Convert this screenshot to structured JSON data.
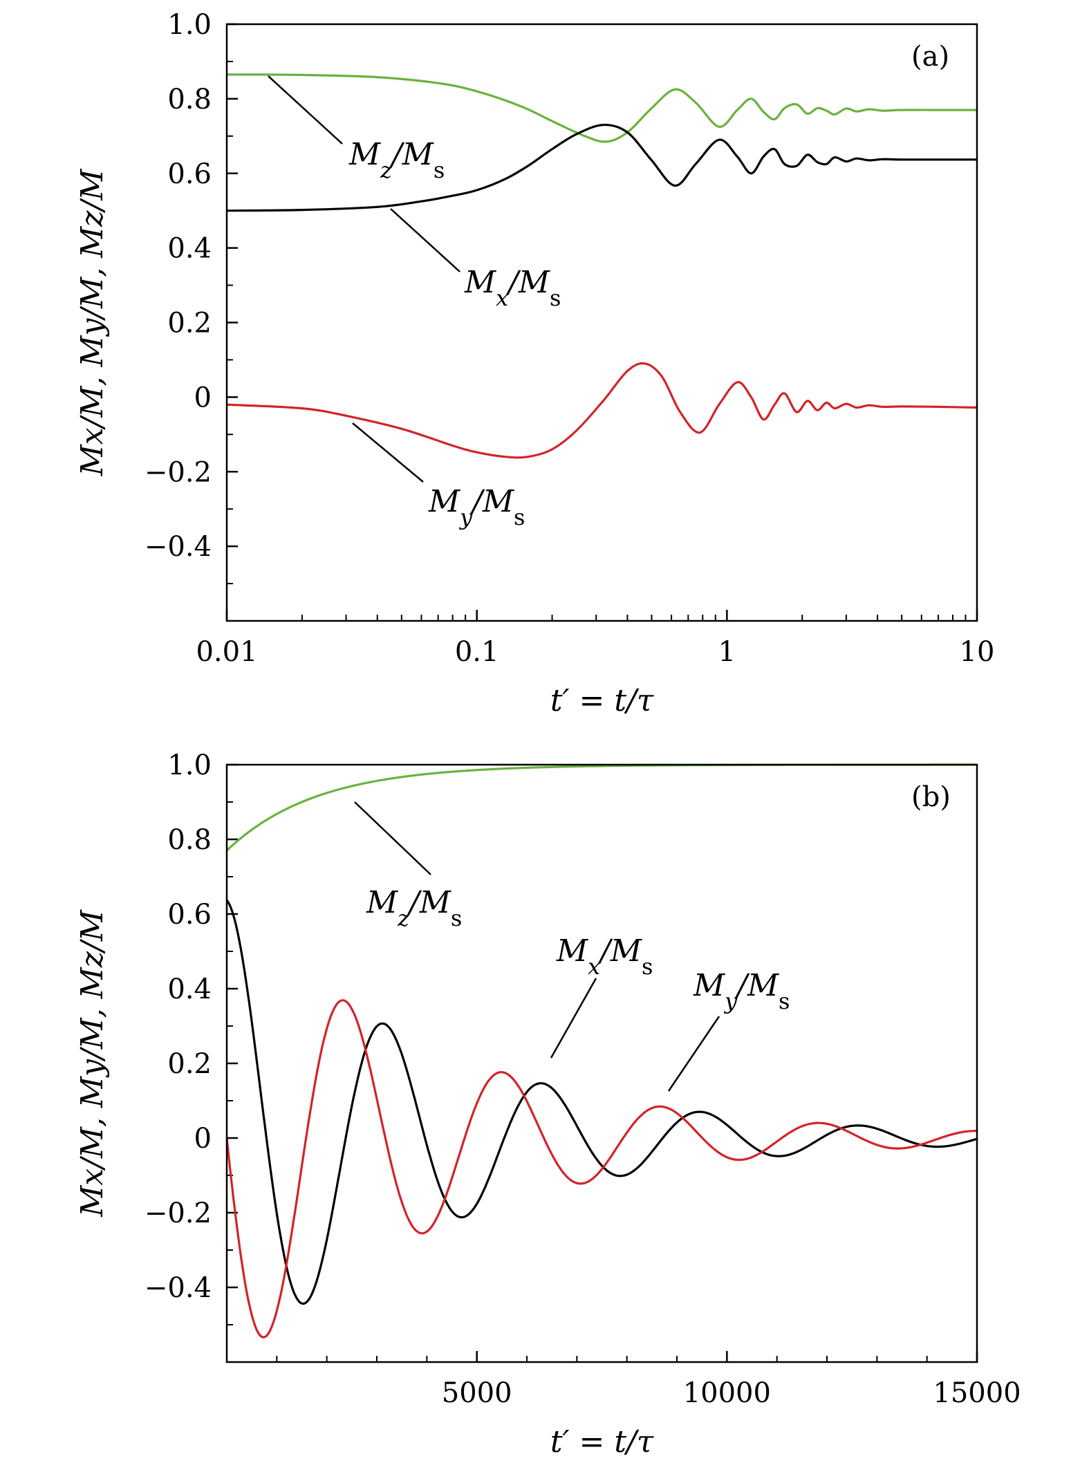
{
  "chart_data": [
    {
      "panel": "(a)",
      "type": "line",
      "x_scale": "log",
      "xlim": [
        0.01,
        10
      ],
      "ylim": [
        -0.6,
        1.0
      ],
      "xlabel": "t′ = t/τ",
      "ylabel": "Mx/M, My/M, Mz/M",
      "x_ticks": [
        {
          "value": 0.01,
          "label": "0.01"
        },
        {
          "value": 0.1,
          "label": "0.1"
        },
        {
          "value": 1,
          "label": "1"
        },
        {
          "value": 10,
          "label": "10"
        }
      ],
      "y_ticks": [
        {
          "value": 1.0,
          "label": "1.0"
        },
        {
          "value": 0.8,
          "label": "0.8"
        },
        {
          "value": 0.6,
          "label": "0.6"
        },
        {
          "value": 0.4,
          "label": "0.4"
        },
        {
          "value": 0.2,
          "label": "0.2"
        },
        {
          "value": 0,
          "label": "0"
        },
        {
          "value": -0.2,
          "label": "−0.2"
        },
        {
          "value": -0.4,
          "label": "−0.4"
        }
      ],
      "series": [
        {
          "name": "Mz/Ms",
          "color": "#6ab23d",
          "x": [
            0.01,
            0.02,
            0.04,
            0.07,
            0.1,
            0.15,
            0.2,
            0.27,
            0.33,
            0.4,
            0.5,
            0.62,
            0.75,
            0.93,
            1.1,
            1.25,
            1.4,
            1.55,
            1.7,
            1.9,
            2.1,
            2.3,
            2.5,
            2.7,
            3.0,
            3.3,
            3.7,
            4.2,
            5,
            7,
            10
          ],
          "y": [
            0.865,
            0.864,
            0.858,
            0.842,
            0.82,
            0.78,
            0.74,
            0.7,
            0.685,
            0.71,
            0.775,
            0.825,
            0.79,
            0.725,
            0.77,
            0.8,
            0.765,
            0.745,
            0.775,
            0.785,
            0.76,
            0.775,
            0.768,
            0.758,
            0.774,
            0.766,
            0.772,
            0.768,
            0.77,
            0.77,
            0.77
          ]
        },
        {
          "name": "Mx/Ms",
          "color": "#000000",
          "x": [
            0.01,
            0.02,
            0.04,
            0.06,
            0.08,
            0.1,
            0.13,
            0.16,
            0.2,
            0.25,
            0.32,
            0.4,
            0.5,
            0.62,
            0.75,
            0.93,
            1.1,
            1.25,
            1.4,
            1.55,
            1.7,
            1.9,
            2.1,
            2.3,
            2.5,
            2.7,
            3.0,
            3.3,
            3.7,
            4.2,
            5,
            7,
            10
          ],
          "y": [
            0.5,
            0.502,
            0.51,
            0.525,
            0.54,
            0.555,
            0.585,
            0.62,
            0.665,
            0.705,
            0.73,
            0.71,
            0.635,
            0.567,
            0.625,
            0.69,
            0.645,
            0.6,
            0.645,
            0.665,
            0.625,
            0.62,
            0.65,
            0.63,
            0.625,
            0.643,
            0.632,
            0.64,
            0.635,
            0.638,
            0.637,
            0.637,
            0.637
          ]
        },
        {
          "name": "My/Ms",
          "color": "#d2232a",
          "x": [
            0.01,
            0.02,
            0.03,
            0.05,
            0.08,
            0.1,
            0.13,
            0.16,
            0.2,
            0.25,
            0.32,
            0.4,
            0.47,
            0.55,
            0.65,
            0.78,
            0.93,
            1.1,
            1.25,
            1.4,
            1.55,
            1.7,
            1.9,
            2.1,
            2.3,
            2.5,
            2.7,
            3.0,
            3.3,
            3.7,
            4.2,
            5,
            7,
            10
          ],
          "y": [
            -0.02,
            -0.03,
            -0.05,
            -0.085,
            -0.13,
            -0.148,
            -0.16,
            -0.16,
            -0.14,
            -0.09,
            -0.01,
            0.07,
            0.09,
            0.055,
            -0.04,
            -0.095,
            -0.02,
            0.04,
            0.0,
            -0.06,
            -0.02,
            0.01,
            -0.04,
            -0.01,
            -0.035,
            -0.015,
            -0.03,
            -0.018,
            -0.028,
            -0.022,
            -0.026,
            -0.025,
            -0.026,
            -0.028
          ]
        }
      ],
      "annotations": [
        {
          "series": "Mz/Ms",
          "text_main": "M",
          "text_sub": "z",
          "text_rest": "/M",
          "text_sub2": "s"
        },
        {
          "series": "Mx/Ms",
          "text_main": "M",
          "text_sub": "x",
          "text_rest": "/M",
          "text_sub2": "s"
        },
        {
          "series": "My/Ms",
          "text_main": "M",
          "text_sub": "y",
          "text_rest": "/M",
          "text_sub2": "s"
        }
      ]
    },
    {
      "panel": "(b)",
      "type": "line",
      "x_scale": "linear",
      "xlim": [
        0,
        15000
      ],
      "ylim": [
        -0.6,
        1.0
      ],
      "xlabel": "t′ = t/τ",
      "ylabel": "Mx/M, My/M, Mz/M",
      "x_ticks": [
        {
          "value": 5000,
          "label": "5000"
        },
        {
          "value": 10000,
          "label": "10000"
        },
        {
          "value": 15000,
          "label": "15000"
        }
      ],
      "y_ticks": [
        {
          "value": 1.0,
          "label": "1.0"
        },
        {
          "value": 0.8,
          "label": "0.8"
        },
        {
          "value": 0.6,
          "label": "0.6"
        },
        {
          "value": 0.4,
          "label": "0.4"
        },
        {
          "value": 0.2,
          "label": "0.2"
        },
        {
          "value": 0,
          "label": "0"
        },
        {
          "value": -0.2,
          "label": "−0.2"
        },
        {
          "value": -0.4,
          "label": "−0.4"
        }
      ],
      "series": [
        {
          "name": "Mz/Ms",
          "color": "#6ab23d",
          "model": {
            "kind": "relax",
            "y0": 0.77,
            "y_inf": 1.0,
            "decay": 1800
          }
        },
        {
          "name": "Mx/Ms",
          "color": "#000000",
          "model": {
            "kind": "damped_cos",
            "amp": 0.637,
            "period": 3170,
            "decay": 4300,
            "phase": 0
          }
        },
        {
          "name": "My/Ms",
          "color": "#d2232a",
          "model": {
            "kind": "damped_sin",
            "amp": -0.637,
            "period": 3170,
            "decay": 4300,
            "phase": 0
          }
        }
      ],
      "annotations": [
        {
          "series": "Mz/Ms",
          "text_main": "M",
          "text_sub": "z",
          "text_rest": "/M",
          "text_sub2": "s"
        },
        {
          "series": "Mx/Ms",
          "text_main": "M",
          "text_sub": "x",
          "text_rest": "/M",
          "text_sub2": "s"
        },
        {
          "series": "My/Ms",
          "text_main": "M",
          "text_sub": "y",
          "text_rest": "/M",
          "text_sub2": "s"
        }
      ]
    }
  ]
}
